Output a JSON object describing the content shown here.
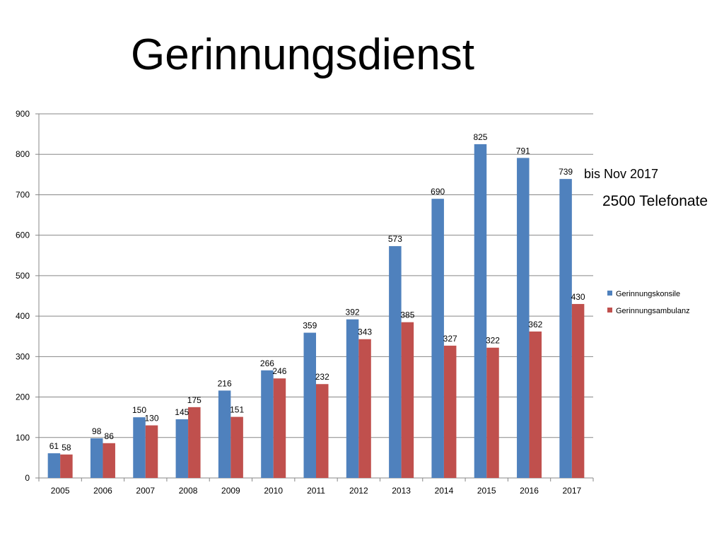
{
  "page": {
    "title": "Gerinnungsdienst",
    "note_line1": "bis Nov 2017",
    "note_line2": "2500 Telefonate"
  },
  "chart_data": {
    "type": "bar",
    "categories": [
      "2005",
      "2006",
      "2007",
      "2008",
      "2009",
      "2010",
      "2011",
      "2012",
      "2013",
      "2014",
      "2015",
      "2016",
      "2017"
    ],
    "series": [
      {
        "name": "Gerinnungskonsile",
        "color": "#4F81BD",
        "values": [
          61,
          98,
          150,
          145,
          216,
          266,
          359,
          392,
          573,
          690,
          825,
          791,
          739
        ]
      },
      {
        "name": "Gerinnungsambulanz",
        "color": "#C0504D",
        "values": [
          58,
          86,
          130,
          175,
          151,
          246,
          232,
          343,
          385,
          327,
          322,
          362,
          430
        ]
      }
    ],
    "ylim": [
      0,
      900
    ],
    "yticks": [
      0,
      100,
      200,
      300,
      400,
      500,
      600,
      700,
      800,
      900
    ],
    "grid": true,
    "legend": "right",
    "xlabel": "",
    "ylabel": ""
  }
}
